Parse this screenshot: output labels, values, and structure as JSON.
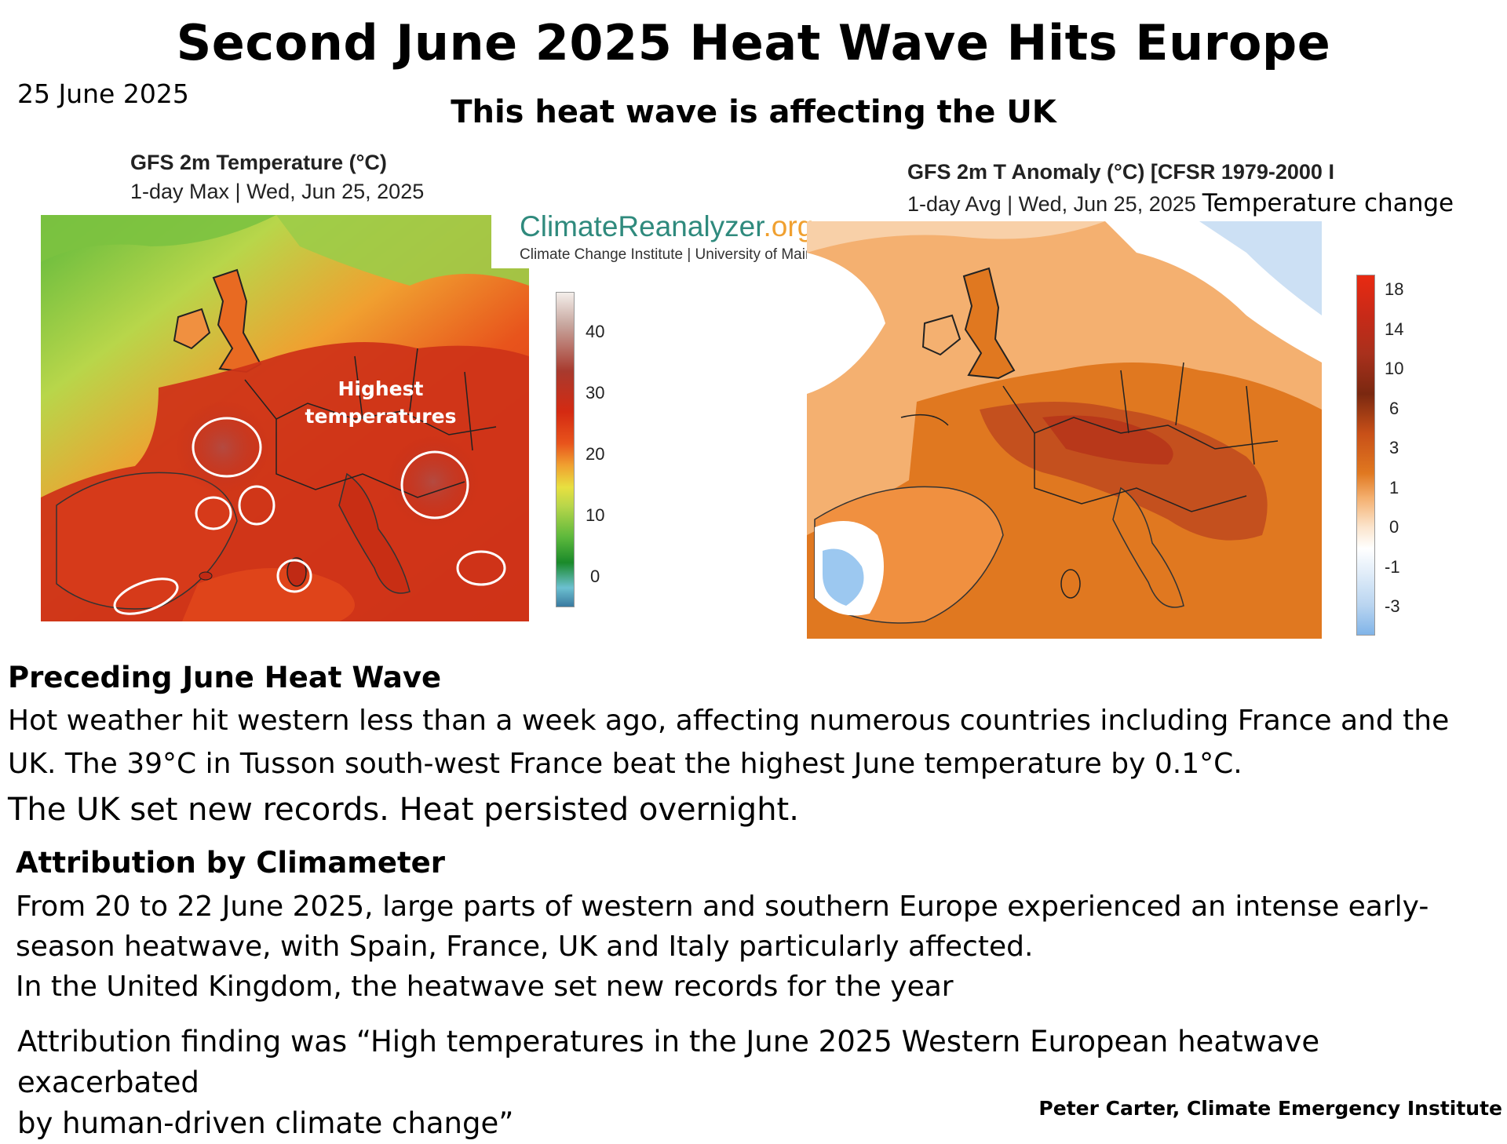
{
  "header": {
    "title": "Second June 2025 Heat Wave Hits Europe",
    "date": "25 June 2025",
    "subtitle": "This heat wave is affecting the UK"
  },
  "map_left": {
    "title": "GFS 2m Temperature (°C)",
    "subtitle": "1-day Max | Wed, Jun 25, 2025",
    "annotation": "Highest temperatures",
    "colorbar_ticks": [
      "40",
      "30",
      "20",
      "10",
      "0"
    ],
    "colors": {
      "hot": "#d42a12",
      "warm": "#e8541c",
      "mild": "#b8d64a",
      "cool": "#5cb83c",
      "extreme": "#a83a2e"
    }
  },
  "logo": {
    "name_main": "ClimateReanalyzer",
    "name_suffix": ".org",
    "tagline": "Climate Change Institute | University of Maine"
  },
  "map_right": {
    "title": "GFS 2m T Anomaly (°C) [CFSR 1979-2000 I",
    "subtitle": "1-day Avg | Wed, Jun 25, 2025",
    "label": "Temperature change",
    "colorbar_ticks": [
      "18",
      "14",
      "10",
      "6",
      "3",
      "1",
      "0",
      "-1",
      "-3"
    ],
    "colors": {
      "strong": "#b8381a",
      "moderate": "#e07820",
      "light": "#f4b070",
      "neutral": "#ffffff",
      "cool": "#9cc8f0"
    }
  },
  "preceding": {
    "heading": "Preceding June Heat Wave",
    "line1": "Hot weather hit western less than a week ago, affecting numerous countries including France and the",
    "line2": "UK. The 39°C in Tusson south-west France beat the highest June temperature by 0.1°C.",
    "line3": "The UK set new records. Heat persisted overnight."
  },
  "attribution": {
    "heading": "Attribution by Climameter",
    "line1": "From 20 to 22 June 2025, large parts of western and southern Europe experienced an intense early-",
    "line2": "season heatwave, with Spain, France, UK and Italy particularly affected.",
    "line3": "In the United Kingdom, the heatwave set new records for the year",
    "finding1": "Attribution finding was “High temperatures in the June 2025 Western European heatwave exacerbated",
    "finding2": "by human-driven climate change”"
  },
  "credit": "Peter Carter,  Climate Emergency Institute"
}
